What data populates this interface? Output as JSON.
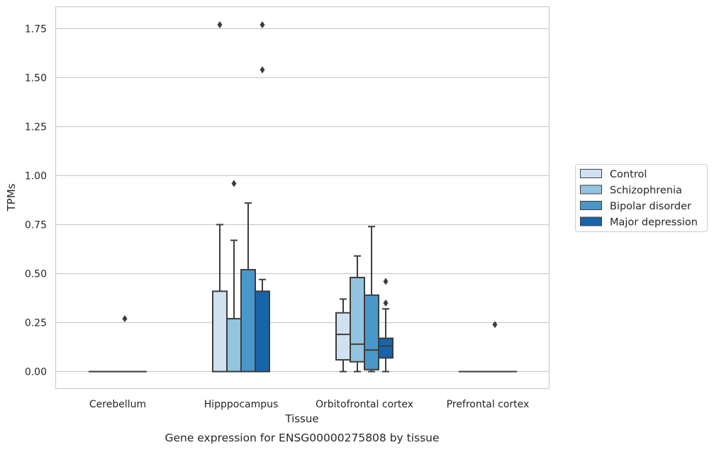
{
  "chart_data": {
    "type": "box",
    "title": "",
    "caption": "Gene expression for ENSG00000275808 by tissue",
    "xlabel": "Tissue",
    "ylabel": "TPMs",
    "ylim": [
      -0.085,
      1.86
    ],
    "yticks": [
      0.0,
      0.25,
      0.5,
      0.75,
      1.0,
      1.25,
      1.5,
      1.75
    ],
    "ytick_labels": [
      "0.00",
      "0.25",
      "0.50",
      "0.75",
      "1.00",
      "1.25",
      "1.50",
      "1.75"
    ],
    "grid": true,
    "legend_position": "right",
    "categories": [
      "Cerebellum",
      "Hipppocampus",
      "Orbitofrontal cortex",
      "Prefrontal cortex"
    ],
    "series": [
      {
        "name": "Control",
        "color": "#d0e1f2",
        "boxes": [
          {
            "whislo": 0.0,
            "q1": 0.0,
            "med": 0.0,
            "q3": 0.0,
            "whishi": 0.0,
            "fliers": []
          },
          {
            "whislo": 0.0,
            "q1": 0.0,
            "med": 0.0,
            "q3": 0.41,
            "whishi": 0.75,
            "fliers": [
              1.77
            ]
          },
          {
            "whislo": 0.0,
            "q1": 0.06,
            "med": 0.19,
            "q3": 0.3,
            "whishi": 0.37,
            "fliers": []
          },
          {
            "whislo": 0.0,
            "q1": 0.0,
            "med": 0.0,
            "q3": 0.0,
            "whishi": 0.0,
            "fliers": []
          }
        ]
      },
      {
        "name": "Schizophrenia",
        "color": "#94c4df",
        "boxes": [
          {
            "whislo": 0.0,
            "q1": 0.0,
            "med": 0.0,
            "q3": 0.0,
            "whishi": 0.0,
            "fliers": []
          },
          {
            "whislo": 0.0,
            "q1": 0.0,
            "med": 0.0,
            "q3": 0.27,
            "whishi": 0.67,
            "fliers": [
              0.96
            ]
          },
          {
            "whislo": 0.0,
            "q1": 0.05,
            "med": 0.14,
            "q3": 0.48,
            "whishi": 0.59,
            "fliers": []
          },
          {
            "whislo": 0.0,
            "q1": 0.0,
            "med": 0.0,
            "q3": 0.0,
            "whishi": 0.0,
            "fliers": []
          }
        ]
      },
      {
        "name": "Bipolar disorder",
        "color": "#4a98c9",
        "boxes": [
          {
            "whislo": 0.0,
            "q1": 0.0,
            "med": 0.0,
            "q3": 0.0,
            "whishi": 0.0,
            "fliers": [
              0.27
            ]
          },
          {
            "whislo": 0.0,
            "q1": 0.0,
            "med": 0.0,
            "q3": 0.52,
            "whishi": 0.86,
            "fliers": []
          },
          {
            "whislo": 0.0,
            "q1": 0.01,
            "med": 0.11,
            "q3": 0.39,
            "whishi": 0.74,
            "fliers": []
          },
          {
            "whislo": 0.0,
            "q1": 0.0,
            "med": 0.0,
            "q3": 0.0,
            "whishi": 0.0,
            "fliers": [
              0.24
            ]
          }
        ]
      },
      {
        "name": "Major depression",
        "color": "#1764ab",
        "boxes": [
          {
            "whislo": 0.0,
            "q1": 0.0,
            "med": 0.0,
            "q3": 0.0,
            "whishi": 0.0,
            "fliers": []
          },
          {
            "whislo": 0.0,
            "q1": 0.0,
            "med": 0.0,
            "q3": 0.41,
            "whishi": 0.47,
            "fliers": [
              1.54,
              1.77
            ]
          },
          {
            "whislo": 0.0,
            "q1": 0.07,
            "med": 0.13,
            "q3": 0.17,
            "whishi": 0.32,
            "fliers": [
              0.35,
              0.46
            ]
          },
          {
            "whislo": 0.0,
            "q1": 0.0,
            "med": 0.0,
            "q3": 0.0,
            "whishi": 0.0,
            "fliers": []
          }
        ]
      }
    ]
  }
}
